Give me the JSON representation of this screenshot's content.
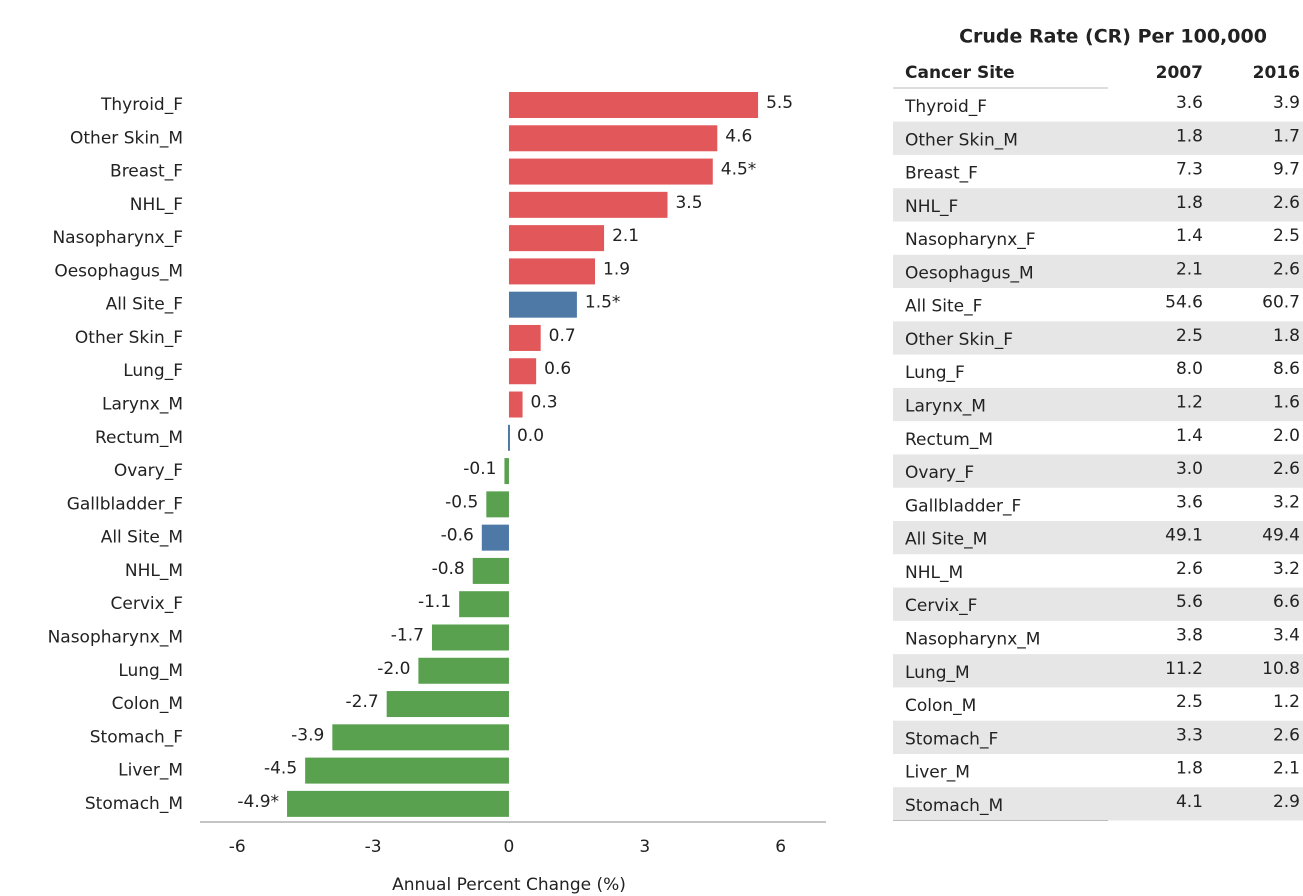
{
  "chart_data": {
    "type": "hbar",
    "xlabel": "Annual Percent Change (%)",
    "categories": [
      "Thyroid_F",
      "Other Skin_M",
      "Breast_F",
      "NHL_F",
      "Nasopharynx_F",
      "Oesophagus_M",
      "All Site_F",
      "Other Skin_F",
      "Lung_F",
      "Larynx_M",
      "Rectum_M",
      "Ovary_F",
      "Gallbladder_F",
      "All Site_M",
      "NHL_M",
      "Cervix_F",
      "Nasopharynx_M",
      "Lung_M",
      "Colon_M",
      "Stomach_F",
      "Liver_M",
      "Stomach_M"
    ],
    "values": [
      5.5,
      4.6,
      4.5,
      3.5,
      2.1,
      1.9,
      1.5,
      0.7,
      0.6,
      0.3,
      0.0,
      -0.1,
      -0.5,
      -0.6,
      -0.8,
      -1.1,
      -1.7,
      -2.0,
      -2.7,
      -3.9,
      -4.5,
      -4.9
    ],
    "value_labels": [
      "5.5",
      "4.6",
      "4.5*",
      "3.5",
      "2.1",
      "1.9",
      "1.5*",
      "0.7",
      "0.6",
      "0.3",
      "0.0",
      "-0.1",
      "-0.5",
      "-0.6",
      "-0.8",
      "-1.1",
      "-1.7",
      "-2.0",
      "-2.7",
      "-3.9",
      "-4.5",
      "-4.9*"
    ],
    "colors": [
      "#e2575a",
      "#e2575a",
      "#e2575a",
      "#e2575a",
      "#e2575a",
      "#e2575a",
      "#4e79a7",
      "#e2575a",
      "#e2575a",
      "#e2575a",
      "#4e79a7",
      "#59a14f",
      "#59a14f",
      "#4e79a7",
      "#59a14f",
      "#59a14f",
      "#59a14f",
      "#59a14f",
      "#59a14f",
      "#59a14f",
      "#59a14f",
      "#59a14f"
    ],
    "xlim": [
      -6.8,
      7
    ],
    "xticks": [
      -6,
      -3,
      0,
      3,
      6
    ],
    "grid": false
  },
  "table": {
    "title": "Crude Rate (CR) Per 100,000",
    "header": [
      "Cancer Site",
      "2007",
      "2016"
    ],
    "rows": [
      [
        "Thyroid_F",
        "3.6",
        "3.9"
      ],
      [
        "Other Skin_M",
        "1.8",
        "1.7"
      ],
      [
        "Breast_F",
        "7.3",
        "9.7"
      ],
      [
        "NHL_F",
        "1.8",
        "2.6"
      ],
      [
        "Nasopharynx_F",
        "1.4",
        "2.5"
      ],
      [
        "Oesophagus_M",
        "2.1",
        "2.6"
      ],
      [
        "All Site_F",
        "54.6",
        "60.7"
      ],
      [
        "Other Skin_F",
        "2.5",
        "1.8"
      ],
      [
        "Lung_F",
        "8.0",
        "8.6"
      ],
      [
        "Larynx_M",
        "1.2",
        "1.6"
      ],
      [
        "Rectum_M",
        "1.4",
        "2.0"
      ],
      [
        "Ovary_F",
        "3.0",
        "2.6"
      ],
      [
        "Gallbladder_F",
        "3.6",
        "3.2"
      ],
      [
        "All Site_M",
        "49.1",
        "49.4"
      ],
      [
        "NHL_M",
        "2.6",
        "3.2"
      ],
      [
        "Cervix_F",
        "5.6",
        "6.6"
      ],
      [
        "Nasopharynx_M",
        "3.8",
        "3.4"
      ],
      [
        "Lung_M",
        "11.2",
        "10.8"
      ],
      [
        "Colon_M",
        "2.5",
        "1.2"
      ],
      [
        "Stomach_F",
        "3.3",
        "2.6"
      ],
      [
        "Liver_M",
        "1.8",
        "2.1"
      ],
      [
        "Stomach_M",
        "4.1",
        "2.9"
      ]
    ],
    "row_colors": [
      "#e2575a",
      "#e2575a",
      "#e2575a",
      "#e2575a",
      "#e2575a",
      "#e2575a",
      "#4e79a7",
      "#e2575a",
      "#e2575a",
      "#e2575a",
      "#4e79a7",
      "#59a14f",
      "#59a14f",
      "#4e79a7",
      "#59a14f",
      "#59a14f",
      "#59a14f",
      "#59a14f",
      "#59a14f",
      "#59a14f",
      "#59a14f",
      "#59a14f"
    ]
  }
}
